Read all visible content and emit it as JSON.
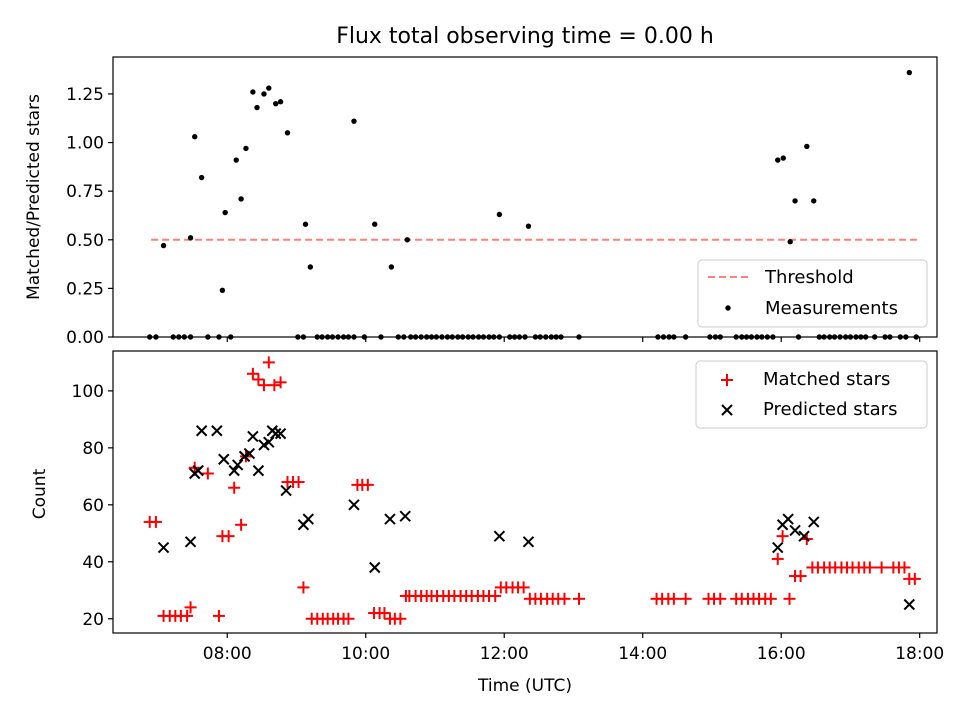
{
  "chart_data": [
    {
      "type": "scatter",
      "title": "Flux total observing time = 0.00 h",
      "ylabel": "Matched/Predicted stars",
      "xlabel": "",
      "xlim_hours": [
        6.35,
        18.25
      ],
      "ylim": [
        0,
        1.44
      ],
      "yticks": [
        "0.00",
        "0.25",
        "0.50",
        "0.75",
        "1.00",
        "1.25"
      ],
      "ytick_values": [
        0,
        0.25,
        0.5,
        0.75,
        1.0,
        1.25
      ],
      "grid": false,
      "legend_position": "lower-right",
      "threshold": {
        "name": "Threshold",
        "value": 0.5,
        "x_range": [
          6.9,
          17.97
        ],
        "color": "#ff7f7f",
        "style": "dashed"
      },
      "series": [
        {
          "name": "Measurements",
          "color": "#000000",
          "marker": "dot",
          "x": [
            7.08,
            7.47,
            7.53,
            7.63,
            7.93,
            7.97,
            8.13,
            8.2,
            8.27,
            8.37,
            8.43,
            8.53,
            8.6,
            8.7,
            8.77,
            8.87,
            9.13,
            9.2,
            9.83,
            10.13,
            10.37,
            10.6,
            11.93,
            12.35,
            15.95,
            16.03,
            16.13,
            16.2,
            16.37,
            16.47,
            17.85
          ],
          "y": [
            0.47,
            0.51,
            1.03,
            0.82,
            0.24,
            0.64,
            0.91,
            0.71,
            0.97,
            1.26,
            1.18,
            1.25,
            1.28,
            1.2,
            1.21,
            1.05,
            0.58,
            0.36,
            1.11,
            0.58,
            0.36,
            0.5,
            0.63,
            0.57,
            0.91,
            0.92,
            0.49,
            0.7,
            0.98,
            0.7,
            1.36
          ]
        },
        {
          "name": "Measurements (zero)",
          "color": "#000000",
          "marker": "dot",
          "x": [
            6.88,
            6.97,
            7.22,
            7.3,
            7.38,
            7.47,
            7.72,
            7.88,
            8.05,
            9.02,
            9.1,
            9.3,
            9.37,
            9.45,
            9.52,
            9.6,
            9.68,
            9.75,
            9.83,
            9.98,
            10.22,
            10.47,
            10.55,
            10.65,
            10.72,
            10.8,
            10.88,
            10.95,
            11.02,
            11.1,
            11.18,
            11.25,
            11.33,
            11.4,
            11.48,
            11.55,
            11.63,
            11.7,
            11.78,
            11.85,
            11.93,
            12.08,
            12.15,
            12.22,
            12.3,
            12.45,
            12.52,
            12.6,
            12.68,
            12.75,
            12.82,
            13.08,
            14.22,
            14.3,
            14.38,
            14.45,
            14.62,
            14.97,
            15.05,
            15.12,
            15.35,
            15.43,
            15.5,
            15.57,
            15.65,
            15.72,
            15.8,
            15.88,
            16.25,
            16.55,
            16.62,
            16.7,
            16.77,
            16.85,
            16.93,
            17.0,
            17.08,
            17.15,
            17.22,
            17.35,
            17.5,
            17.57,
            17.72,
            17.8,
            17.95
          ],
          "y_value": 0
        }
      ]
    },
    {
      "type": "scatter",
      "title": "",
      "xlabel": "Time (UTC)",
      "ylabel": "Count",
      "xlim_hours": [
        6.35,
        18.25
      ],
      "ylim": [
        15,
        114
      ],
      "xticks": [
        "08:00",
        "10:00",
        "12:00",
        "14:00",
        "16:00",
        "18:00"
      ],
      "xtick_hours": [
        8,
        10,
        12,
        14,
        16,
        18
      ],
      "yticks": [
        "20",
        "40",
        "60",
        "80",
        "100"
      ],
      "ytick_values": [
        20,
        40,
        60,
        80,
        100
      ],
      "grid": false,
      "legend_position": "upper-right",
      "series": [
        {
          "name": "Matched stars",
          "color": "#ff0000",
          "marker": "plus",
          "x": [
            6.88,
            6.97,
            7.08,
            7.17,
            7.25,
            7.33,
            7.42,
            7.47,
            7.53,
            7.72,
            7.88,
            7.93,
            8.02,
            8.1,
            8.2,
            8.27,
            8.37,
            8.45,
            8.53,
            8.6,
            8.68,
            8.77,
            8.87,
            8.95,
            9.03,
            9.1,
            9.22,
            9.3,
            9.38,
            9.45,
            9.53,
            9.6,
            9.68,
            9.75,
            9.88,
            9.95,
            10.03,
            10.12,
            10.2,
            10.27,
            10.35,
            10.42,
            10.5,
            10.58,
            10.63,
            10.72,
            10.8,
            10.88,
            10.95,
            11.03,
            11.12,
            11.2,
            11.28,
            11.37,
            11.45,
            11.53,
            11.62,
            11.7,
            11.78,
            11.87,
            11.95,
            12.03,
            12.12,
            12.2,
            12.28,
            12.37,
            12.45,
            12.53,
            12.62,
            12.7,
            12.78,
            12.87,
            13.08,
            14.2,
            14.28,
            14.37,
            14.45,
            14.62,
            14.95,
            15.03,
            15.12,
            15.35,
            15.43,
            15.52,
            15.6,
            15.68,
            15.77,
            15.85,
            15.95,
            16.02,
            16.12,
            16.2,
            16.28,
            16.37,
            16.45,
            16.53,
            16.62,
            16.7,
            16.78,
            16.87,
            16.95,
            17.03,
            17.12,
            17.2,
            17.28,
            17.45,
            17.62,
            17.7,
            17.78,
            17.85,
            17.93
          ],
          "y": [
            54,
            54,
            21,
            21,
            21,
            21,
            21,
            24,
            73,
            71,
            21,
            49,
            49,
            66,
            53,
            77,
            106,
            104,
            102,
            110,
            102,
            103,
            68,
            68,
            68,
            31,
            20,
            20,
            20,
            20,
            20,
            20,
            20,
            20,
            67,
            67,
            67,
            22,
            22,
            22,
            20,
            20,
            20,
            28,
            28,
            28,
            28,
            28,
            28,
            28,
            28,
            28,
            28,
            28,
            28,
            28,
            28,
            28,
            28,
            28,
            31,
            31,
            31,
            31,
            31,
            27,
            27,
            27,
            27,
            27,
            27,
            27,
            27,
            27,
            27,
            27,
            27,
            27,
            27,
            27,
            27,
            27,
            27,
            27,
            27,
            27,
            27,
            27,
            41,
            49,
            27,
            35,
            35,
            48,
            38,
            38,
            38,
            38,
            38,
            38,
            38,
            38,
            38,
            38,
            38,
            38,
            38,
            38,
            38,
            34,
            34
          ]
        },
        {
          "name": "Predicted stars",
          "color": "#000000",
          "marker": "x",
          "x": [
            7.08,
            7.47,
            7.53,
            7.58,
            7.63,
            7.85,
            7.95,
            8.1,
            8.15,
            8.25,
            8.32,
            8.37,
            8.45,
            8.53,
            8.6,
            8.65,
            8.7,
            8.77,
            8.85,
            9.1,
            9.17,
            9.83,
            10.13,
            10.35,
            10.57,
            11.93,
            12.35,
            15.95,
            16.02,
            16.1,
            16.2,
            16.33,
            16.47,
            17.85
          ],
          "y": [
            45,
            47,
            71,
            72,
            86,
            86,
            76,
            72,
            74,
            77,
            78,
            84,
            72,
            81,
            82,
            86,
            85,
            85,
            65,
            53,
            55,
            60,
            38,
            55,
            56,
            49,
            47,
            45,
            53,
            55,
            51,
            49,
            54,
            25
          ]
        }
      ]
    }
  ]
}
